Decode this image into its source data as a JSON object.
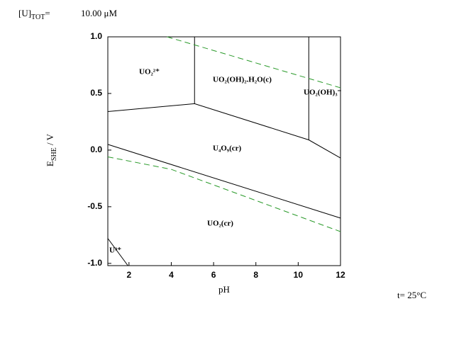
{
  "chart_data": {
    "type": "predominance",
    "concentration_label": [
      "[U]",
      "TOT",
      "="
    ],
    "concentration_value": "10.00 μM",
    "x_label": "pH",
    "y_label": [
      "E",
      "SHE",
      " / V"
    ],
    "temperature": "t= 25°C",
    "xlim": [
      1,
      12
    ],
    "ylim": [
      -1.02,
      1.0
    ],
    "xticks": [
      2,
      4,
      6,
      8,
      10,
      12
    ],
    "yticks": [
      {
        "value": 1.0,
        "label": "1.0"
      },
      {
        "value": 0.5,
        "label": "0.5"
      },
      {
        "value": 0.0,
        "label": "0.0"
      },
      {
        "value": -0.5,
        "label": "-0.5"
      },
      {
        "value": -1.0,
        "label": "-1.0"
      }
    ],
    "regions": [
      "UO₂²⁺",
      "UO₂(OH)₂.H₂O(c)",
      "UO₂(OH)₃⁻",
      "U₄O₉(cr)",
      "UO₂(cr)",
      "U³⁺"
    ],
    "region_color": "#1a1acc",
    "series": [
      {
        "color": "#000000",
        "dashed": false,
        "x": [
          5.1,
          5.1
        ],
        "values": [
          1.0,
          0.41
        ]
      },
      {
        "color": "#000000",
        "dashed": false,
        "x": [
          1,
          5.1,
          10.5,
          12
        ],
        "values": [
          0.34,
          0.41,
          0.09,
          -0.07
        ]
      },
      {
        "color": "#000000",
        "dashed": false,
        "x": [
          10.5,
          10.5
        ],
        "values": [
          1.0,
          0.09
        ]
      },
      {
        "color": "#000000",
        "dashed": false,
        "x": [
          1,
          12
        ],
        "values": [
          0.05,
          -0.6
        ]
      },
      {
        "color": "#000000",
        "dashed": false,
        "x": [
          1,
          1.95
        ],
        "values": [
          -0.78,
          -1.02
        ]
      },
      {
        "color": "#2a9a2a",
        "dashed": true,
        "x": [
          3.8,
          12
        ],
        "values": [
          1.0,
          0.55
        ]
      },
      {
        "color": "#2a9a2a",
        "dashed": true,
        "x": [
          1,
          4,
          12
        ],
        "values": [
          -0.06,
          -0.17,
          -0.72
        ]
      }
    ]
  }
}
